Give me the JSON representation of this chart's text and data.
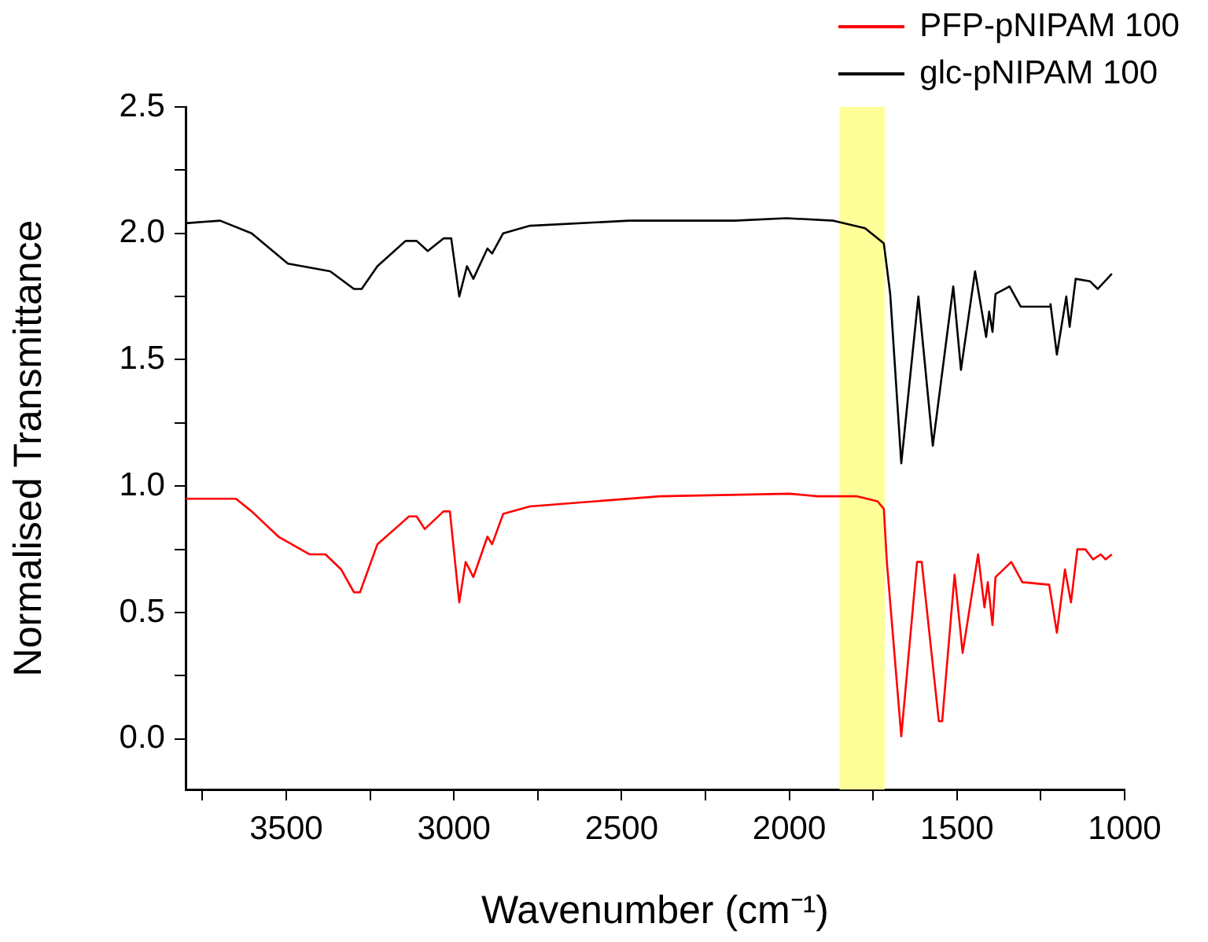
{
  "chart_data": {
    "type": "line",
    "xlabel": "Wavenumber (cm⁻¹)",
    "ylabel": "Normalised Transmittance",
    "xlim": [
      3800,
      1000
    ],
    "ylim": [
      -0.2,
      2.5
    ],
    "xticks": [
      {
        "value": 3750,
        "label": null
      },
      3500,
      {
        "value": 3250,
        "label": null
      },
      3000,
      {
        "value": 2750,
        "label": null
      },
      2500,
      {
        "value": 2250,
        "label": null
      },
      2000,
      {
        "value": 1750,
        "label": null
      },
      1500,
      {
        "value": 1250,
        "label": null
      },
      1000
    ],
    "yticks": [
      {
        "value": 0,
        "label": "0.0"
      },
      {
        "value": 0.25,
        "label": null
      },
      {
        "value": 0.5,
        "label": "0.5"
      },
      {
        "value": 0.75,
        "label": null
      },
      {
        "value": 1,
        "label": "1.0"
      },
      {
        "value": 1.25,
        "label": null
      },
      {
        "value": 1.5,
        "label": "1.5"
      },
      {
        "value": 1.75,
        "label": null
      },
      {
        "value": 2,
        "label": "2.0"
      },
      {
        "value": 2.25,
        "label": null
      },
      {
        "value": 2.5,
        "label": "2.5"
      }
    ],
    "grid": false,
    "legend": "top right",
    "marker": "none",
    "line_style": "solid",
    "bands": [
      {
        "axis": "x",
        "from": 1850,
        "to": 1715,
        "color": "#ffff99"
      }
    ],
    "series": [
      {
        "name": "PFP-pNIPAM 100",
        "color": "#ff0000",
        "x": [
          3800,
          3650,
          3603,
          3523,
          3430,
          3383,
          3336,
          3298,
          3280,
          3228,
          3134,
          3111,
          3087,
          3031,
          3012,
          2984,
          2965,
          2942,
          2900,
          2886,
          2853,
          2773,
          2384,
          2000,
          1915,
          1800,
          1737,
          1718,
          1709,
          1666,
          1619,
          1605,
          1554,
          1544,
          1507,
          1483,
          1437,
          1418,
          1408,
          1394,
          1385,
          1338,
          1305,
          1225,
          1202,
          1178,
          1160,
          1141,
          1117,
          1094,
          1071,
          1057,
          1038
        ],
        "values": [
          0.95,
          0.95,
          0.9,
          0.8,
          0.73,
          0.73,
          0.67,
          0.58,
          0.58,
          0.77,
          0.88,
          0.88,
          0.83,
          0.9,
          0.9,
          0.54,
          0.7,
          0.64,
          0.8,
          0.77,
          0.89,
          0.92,
          0.96,
          0.97,
          0.96,
          0.96,
          0.94,
          0.91,
          0.7,
          0.01,
          0.7,
          0.7,
          0.07,
          0.07,
          0.65,
          0.34,
          0.73,
          0.52,
          0.62,
          0.45,
          0.64,
          0.7,
          0.62,
          0.61,
          0.42,
          0.67,
          0.54,
          0.75,
          0.75,
          0.71,
          0.73,
          0.71,
          0.73
        ]
      },
      {
        "name": "glc-pNIPAM 100",
        "color": "#000000",
        "x": [
          3800,
          3697,
          3603,
          3495,
          3369,
          3298,
          3275,
          3228,
          3144,
          3111,
          3078,
          3031,
          3008,
          2984,
          2961,
          2942,
          2900,
          2886,
          2853,
          2773,
          2478,
          2163,
          2009,
          1868,
          1774,
          1718,
          1699,
          1666,
          1615,
          1572,
          1511,
          1488,
          1446,
          1413,
          1404,
          1394,
          1385,
          1343,
          1310,
          1225,
          1221,
          1202,
          1174,
          1164,
          1146,
          1103,
          1080,
          1038
        ],
        "values": [
          2.04,
          2.05,
          2.0,
          1.88,
          1.85,
          1.78,
          1.78,
          1.87,
          1.97,
          1.97,
          1.93,
          1.98,
          1.98,
          1.75,
          1.87,
          1.82,
          1.94,
          1.92,
          2.0,
          2.03,
          2.05,
          2.05,
          2.06,
          2.05,
          2.02,
          1.96,
          1.76,
          1.09,
          1.75,
          1.16,
          1.79,
          1.46,
          1.85,
          1.59,
          1.69,
          1.61,
          1.76,
          1.79,
          1.71,
          1.71,
          1.72,
          1.52,
          1.75,
          1.63,
          1.82,
          1.81,
          1.78,
          1.84
        ]
      }
    ]
  }
}
